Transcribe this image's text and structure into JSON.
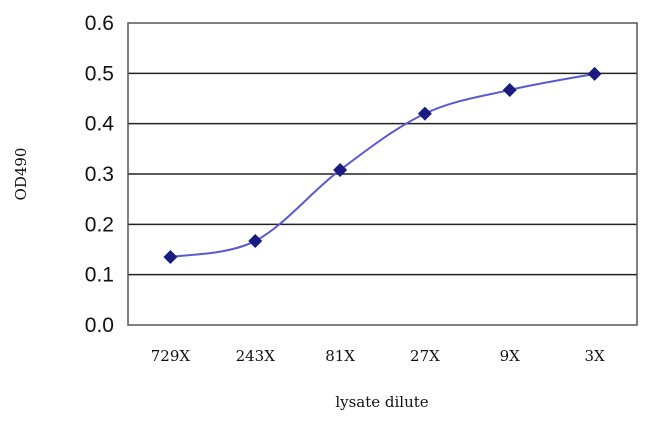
{
  "chart_data": {
    "type": "line",
    "title": "",
    "xlabel": "lysate dilute",
    "ylabel": "OD490",
    "categories": [
      "729X",
      "243X",
      "81X",
      "27X",
      "9X",
      "3X"
    ],
    "series": [
      {
        "values": [
          0.135,
          0.167,
          0.308,
          0.42,
          0.467,
          0.499
        ],
        "color": "#5a5ad0",
        "marker_color": "#1a1a80"
      }
    ],
    "ylim": [
      0,
      0.6
    ],
    "yticks": [
      "0.0",
      "0.1",
      "0.2",
      "0.3",
      "0.4",
      "0.5",
      "0.6"
    ],
    "grid": true,
    "smooth": true
  }
}
